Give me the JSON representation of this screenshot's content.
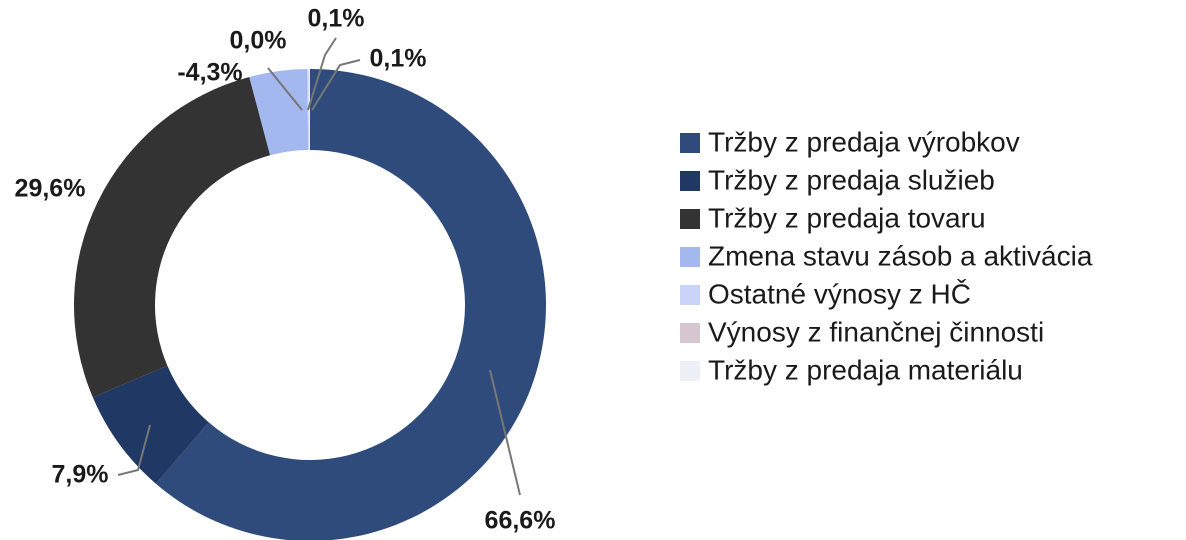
{
  "chart_data": {
    "type": "donut",
    "categories": [
      "Tržby z predaja výrobkov",
      "Tržby z predaja služieb",
      "Tržby z predaja tovaru",
      "Zmena stavu zásob a aktivácia",
      "Ostatné výnosy z HČ",
      "Výnosy z finančnej činnosti",
      "Tržby z predaja materiálu"
    ],
    "values": [
      66.6,
      7.9,
      29.6,
      -4.3,
      0.1,
      0.0,
      0.1
    ],
    "value_labels": [
      "66,6%",
      "7,9%",
      "29,6%",
      "-4,3%",
      "0,1%",
      "0,0%",
      "0,1%"
    ],
    "colors": [
      "#2f4b7c",
      "#1f3864",
      "#333333",
      "#a4b8f0",
      "#c9d5f8",
      "#d6c6cf",
      "#eef0f8"
    ],
    "legend": "right"
  }
}
